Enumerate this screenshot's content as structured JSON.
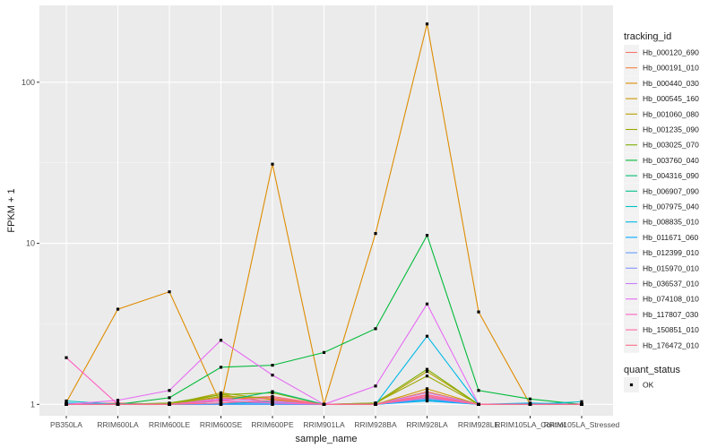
{
  "chart_data": {
    "type": "line",
    "xlabel": "sample_name",
    "ylabel": "FPKM + 1",
    "y_scale": "log10",
    "ylim": [
      0.85,
      300
    ],
    "y_ticks": [
      1,
      10,
      100
    ],
    "y_tick_labels": [
      "1",
      "10",
      "100"
    ],
    "categories": [
      "PB350LA",
      "RRIM600LA",
      "RRIM600LE",
      "RRIM600SE",
      "RRIM600PE",
      "RRIM901LA",
      "RRIM928BA",
      "RRIM928LA",
      "RRIM928LE",
      "RRIM105LA_Control",
      "RRIM105LA_Stressed"
    ],
    "category_labels": [
      "PB350LA",
      "RRIM600LA",
      "RRIM600LE",
      "RRIM600SE",
      "RRIM600PE",
      "RRIM901LA",
      "RRIM928BA",
      "RRIM928LA",
      "RRIM928LE",
      "RRIM105LA_Control",
      "RRIM105LA_Stressed"
    ],
    "grid": true,
    "legend_position": "right",
    "legend": {
      "color_title": "tracking_id",
      "shape_title": "quant_status",
      "shape_entries": [
        "OK"
      ]
    },
    "series": [
      {
        "name": "Hb_000120_690",
        "color": "#F8766D",
        "values": [
          1.0,
          1.02,
          1.0,
          1.08,
          1.12,
          1.0,
          1.0,
          1.15,
          1.0,
          1.0,
          1.0
        ]
      },
      {
        "name": "Hb_000191_010",
        "color": "#EE8044",
        "values": [
          1.0,
          1.0,
          1.01,
          1.1,
          1.08,
          1.0,
          1.0,
          1.2,
          1.0,
          1.0,
          1.0
        ]
      },
      {
        "name": "Hb_000440_030",
        "color": "#DE8C00",
        "values": [
          1.03,
          3.9,
          5.0,
          1.0,
          31.0,
          1.0,
          11.5,
          230.0,
          3.75,
          1.0,
          1.0
        ]
      },
      {
        "name": "Hb_000545_160",
        "color": "#CD9600",
        "values": [
          1.0,
          1.0,
          1.0,
          1.15,
          1.03,
          1.0,
          1.0,
          1.25,
          1.0,
          1.0,
          1.0
        ]
      },
      {
        "name": "Hb_001060_080",
        "color": "#B79F00",
        "values": [
          1.0,
          1.0,
          1.0,
          1.18,
          1.07,
          1.0,
          1.01,
          1.6,
          1.0,
          1.0,
          1.0
        ]
      },
      {
        "name": "Hb_001235_090",
        "color": "#9CA700",
        "values": [
          1.0,
          1.0,
          1.0,
          1.12,
          1.1,
          1.0,
          1.02,
          1.5,
          1.0,
          1.0,
          1.0
        ]
      },
      {
        "name": "Hb_003025_070",
        "color": "#7CAE00",
        "values": [
          1.0,
          1.0,
          1.02,
          1.15,
          1.18,
          1.0,
          1.02,
          1.65,
          1.0,
          1.0,
          1.0
        ]
      },
      {
        "name": "Hb_003760_040",
        "color": "#00BA38",
        "values": [
          1.0,
          1.0,
          1.1,
          1.7,
          1.75,
          2.1,
          2.95,
          11.2,
          1.22,
          1.08,
          1.0
        ]
      },
      {
        "name": "Hb_004316_090",
        "color": "#00BE70",
        "values": [
          1.0,
          1.01,
          1.0,
          1.05,
          1.2,
          1.0,
          1.0,
          1.1,
          1.0,
          1.0,
          1.0
        ]
      },
      {
        "name": "Hb_006907_090",
        "color": "#00C08B",
        "values": [
          1.0,
          1.0,
          1.0,
          1.0,
          1.05,
          1.0,
          1.0,
          1.08,
          1.0,
          1.0,
          1.0
        ]
      },
      {
        "name": "Hb_007975_040",
        "color": "#00BFC4",
        "values": [
          1.05,
          1.0,
          1.0,
          1.0,
          1.0,
          1.0,
          1.0,
          1.06,
          1.0,
          1.0,
          1.04
        ]
      },
      {
        "name": "Hb_008835_010",
        "color": "#00B8E7",
        "values": [
          1.02,
          1.0,
          1.0,
          1.0,
          1.0,
          1.0,
          1.0,
          2.65,
          1.0,
          1.02,
          1.0
        ]
      },
      {
        "name": "Hb_011671_060",
        "color": "#00A9FF",
        "values": [
          1.0,
          1.0,
          1.0,
          1.02,
          1.02,
          1.0,
          1.0,
          1.05,
          1.0,
          1.0,
          1.0
        ]
      },
      {
        "name": "Hb_012399_010",
        "color": "#619CFF",
        "values": [
          1.01,
          1.0,
          1.0,
          1.0,
          1.0,
          1.0,
          1.0,
          1.08,
          1.0,
          1.0,
          1.0
        ]
      },
      {
        "name": "Hb_015970_010",
        "color": "#8494FF",
        "values": [
          1.0,
          1.0,
          1.0,
          1.05,
          1.03,
          1.0,
          1.0,
          1.12,
          1.0,
          1.0,
          1.0
        ]
      },
      {
        "name": "Hb_036537_010",
        "color": "#C77CFF",
        "values": [
          1.0,
          1.0,
          1.0,
          1.08,
          1.05,
          1.0,
          1.0,
          1.18,
          1.0,
          1.0,
          1.0
        ]
      },
      {
        "name": "Hb_074108_010",
        "color": "#E76BF3",
        "values": [
          1.0,
          1.06,
          1.22,
          2.5,
          1.52,
          1.0,
          1.3,
          4.2,
          1.0,
          1.0,
          1.0
        ]
      },
      {
        "name": "Hb_117807_030",
        "color": "#FF61C3",
        "values": [
          1.95,
          1.0,
          1.0,
          1.05,
          1.02,
          1.0,
          1.0,
          1.1,
          1.0,
          1.0,
          1.0
        ]
      },
      {
        "name": "Hb_150851_010",
        "color": "#FF67A4",
        "values": [
          1.0,
          1.0,
          1.0,
          1.06,
          1.1,
          1.0,
          1.0,
          1.14,
          1.0,
          1.0,
          1.0
        ]
      },
      {
        "name": "Hb_176472_010",
        "color": "#FB6F8B",
        "values": [
          1.0,
          1.0,
          1.0,
          1.02,
          1.06,
          1.0,
          1.0,
          1.12,
          1.0,
          1.0,
          1.0
        ]
      }
    ]
  }
}
